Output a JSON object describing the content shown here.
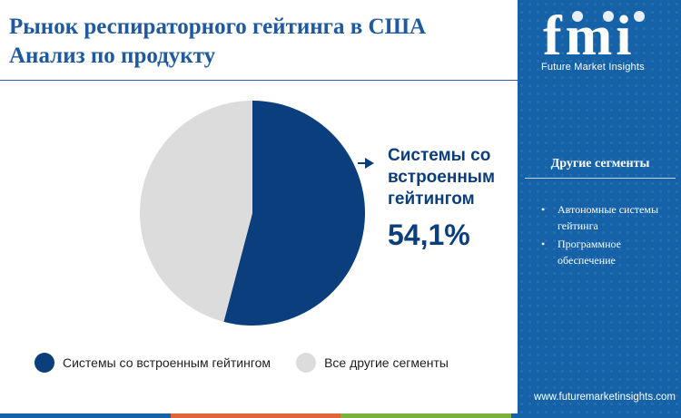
{
  "title_line1": "Рынок респираторного гейтинга в США",
  "title_line2": "Анализ по продукту",
  "chart_data": {
    "type": "pie",
    "slices": [
      {
        "name": "Системы со встроенным гейтингом",
        "value": 54.1,
        "color": "#0b3e7c"
      },
      {
        "name": "Все другие сегменты",
        "value": 45.9,
        "color": "#dcdcdc"
      }
    ],
    "start_angle_deg": 0,
    "direction": "clockwise"
  },
  "callout": {
    "label": "Системы со встроенным гейтингом",
    "value": "54,1%"
  },
  "legend": [
    {
      "label": "Системы со встроенным гейтингом",
      "color": "#0b3e7c"
    },
    {
      "label": "Все другие сегменты",
      "color": "#dcdcdc"
    }
  ],
  "sidebar": {
    "logo_text": "fmi",
    "logo_subtitle": "Future Market Insights",
    "segments_title": "Другие сегменты",
    "segments": [
      "Автономные системы гейтинга",
      "Программное обеспечение"
    ],
    "url": "www.futuremarketinsights.com",
    "bg_color": "#1662a8"
  },
  "bottom_bar_colors": [
    "#1662a8",
    "#e0663a",
    "#7bb13c",
    "#1662a8"
  ]
}
